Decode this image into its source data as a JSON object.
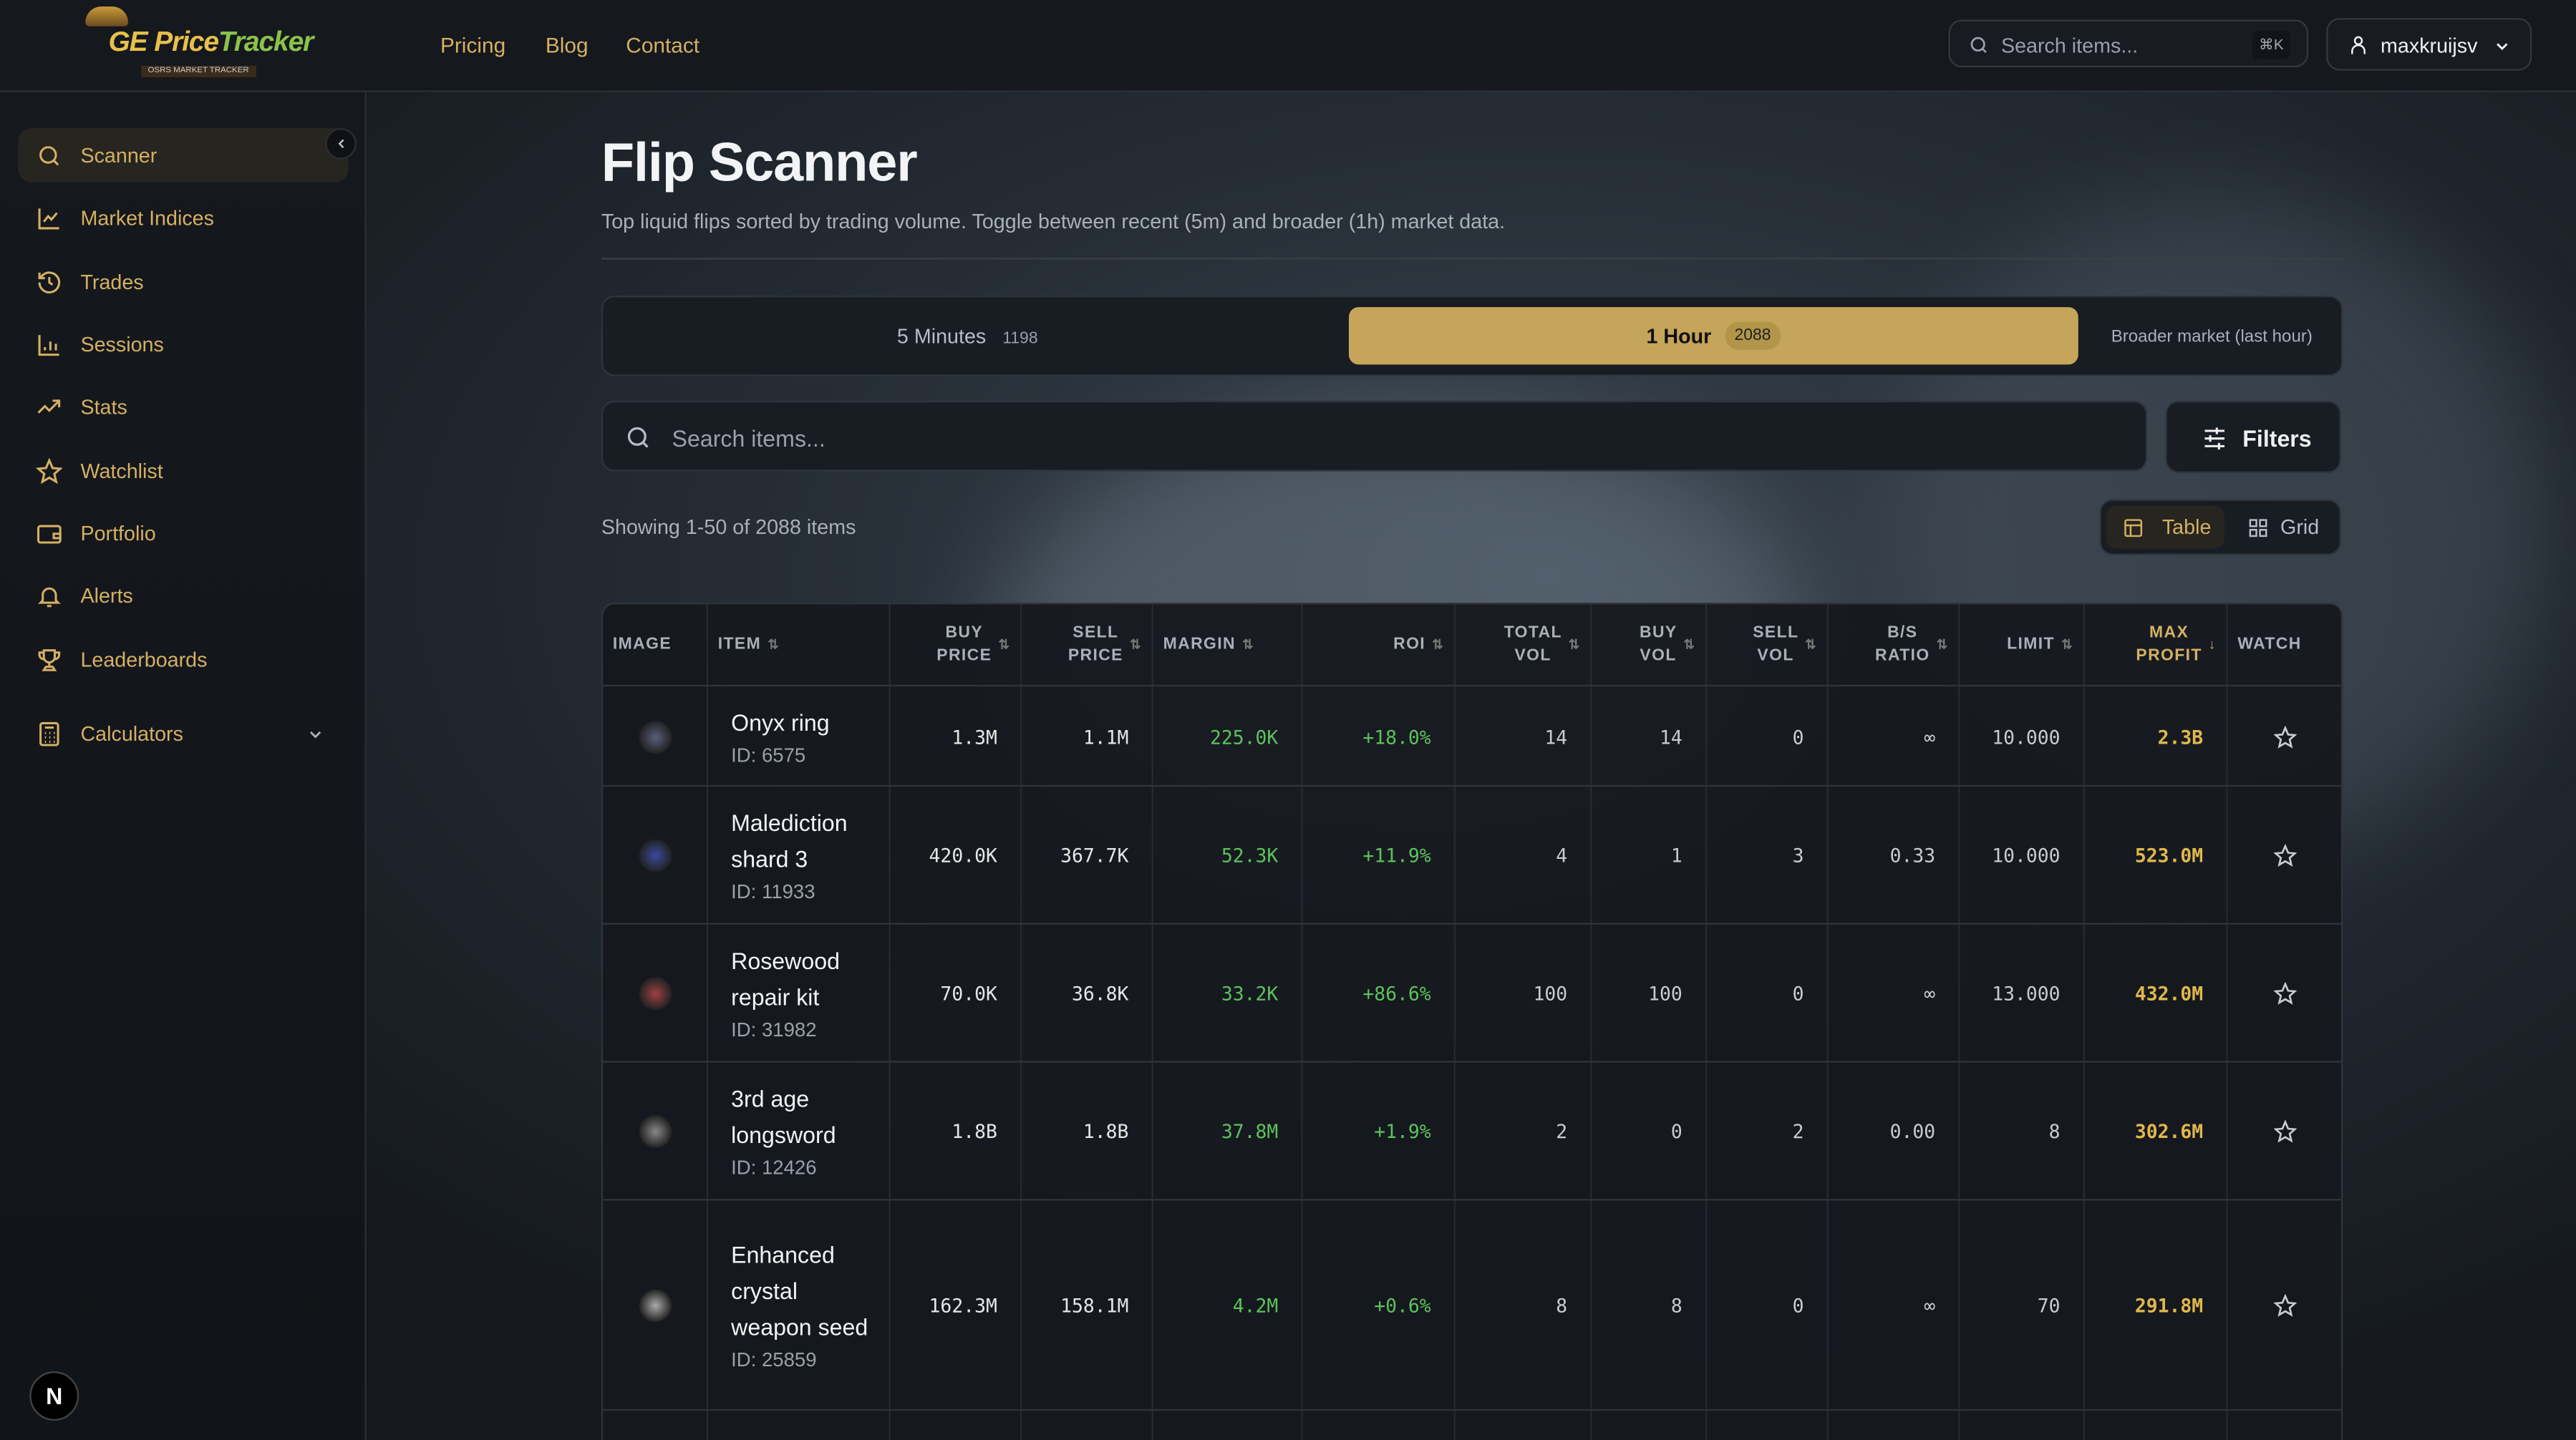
{
  "brand": {
    "logo_text": "GE PriceTracker",
    "logo_sub": "OSRS MARKET TRACKER"
  },
  "nav": {
    "links": [
      "Pricing",
      "Blog",
      "Contact"
    ]
  },
  "header": {
    "search_placeholder": "Search items...",
    "shortcut": "⌘K",
    "username": "maxkruijsv"
  },
  "sidebar": {
    "items": [
      {
        "label": "Scanner",
        "icon": "search-icon",
        "active": true
      },
      {
        "label": "Market Indices",
        "icon": "line-chart-icon"
      },
      {
        "label": "Trades",
        "icon": "history-icon"
      },
      {
        "label": "Sessions",
        "icon": "bar-chart-icon"
      },
      {
        "label": "Stats",
        "icon": "trending-up-icon"
      },
      {
        "label": "Watchlist",
        "icon": "star-icon"
      },
      {
        "label": "Portfolio",
        "icon": "wallet-icon"
      },
      {
        "label": "Alerts",
        "icon": "bell-icon"
      },
      {
        "label": "Leaderboards",
        "icon": "trophy-icon"
      },
      {
        "label": "Calculators",
        "icon": "calculator-icon"
      }
    ],
    "badge": "N"
  },
  "page": {
    "title": "Flip Scanner",
    "subtitle": "Top liquid flips sorted by trading volume. Toggle between recent (5m) and broader (1h) market data."
  },
  "toggle": {
    "five_label": "5 Minutes",
    "five_count": "1198",
    "hour_label": "1 Hour",
    "hour_count": "2088",
    "selected": "1 Hour",
    "note": "Broader market (last hour)"
  },
  "search": {
    "placeholder": "Search items...",
    "filters_label": "Filters"
  },
  "results": {
    "showing": "Showing 1-50 of 2088 items",
    "view_table": "Table",
    "view_grid": "Grid",
    "selected_view": "Table"
  },
  "colors": {
    "accent": "#c4a55a",
    "positive": "#5cc25c",
    "profit": "#e0b84c"
  },
  "table": {
    "columns": [
      "IMAGE",
      "ITEM",
      "BUY PRICE",
      "SELL PRICE",
      "MARGIN",
      "ROI",
      "TOTAL VOL",
      "BUY VOL",
      "SELL VOL",
      "B/S RATIO",
      "LIMIT",
      "MAX PROFIT",
      "WATCH"
    ],
    "sorted_column": "MAX PROFIT",
    "sort_direction": "desc",
    "rows": [
      {
        "name": "Onyx ring",
        "id": "ID: 6575",
        "buy": "1.3M",
        "sell": "1.1M",
        "margin": "225.0K",
        "roi": "+18.0%",
        "total": "14",
        "buyvol": "14",
        "sellvol": "0",
        "ratio": "∞",
        "limit": "10.000",
        "profit": "2.3B"
      },
      {
        "name": "Malediction shard 3",
        "id": "ID: 11933",
        "buy": "420.0K",
        "sell": "367.7K",
        "margin": "52.3K",
        "roi": "+11.9%",
        "total": "4",
        "buyvol": "1",
        "sellvol": "3",
        "ratio": "0.33",
        "limit": "10.000",
        "profit": "523.0M"
      },
      {
        "name": "Rosewood repair kit",
        "id": "ID: 31982",
        "buy": "70.0K",
        "sell": "36.8K",
        "margin": "33.2K",
        "roi": "+86.6%",
        "total": "100",
        "buyvol": "100",
        "sellvol": "0",
        "ratio": "∞",
        "limit": "13.000",
        "profit": "432.0M"
      },
      {
        "name": "3rd age longsword",
        "id": "ID: 12426",
        "buy": "1.8B",
        "sell": "1.8B",
        "margin": "37.8M",
        "roi": "+1.9%",
        "total": "2",
        "buyvol": "0",
        "sellvol": "2",
        "ratio": "0.00",
        "limit": "8",
        "profit": "302.6M"
      },
      {
        "name": "Enhanced crystal weapon seed",
        "id": "ID: 25859",
        "buy": "162.3M",
        "sell": "158.1M",
        "margin": "4.2M",
        "roi": "+0.6%",
        "total": "8",
        "buyvol": "8",
        "sellvol": "0",
        "ratio": "∞",
        "limit": "70",
        "profit": "291.8M"
      }
    ]
  }
}
